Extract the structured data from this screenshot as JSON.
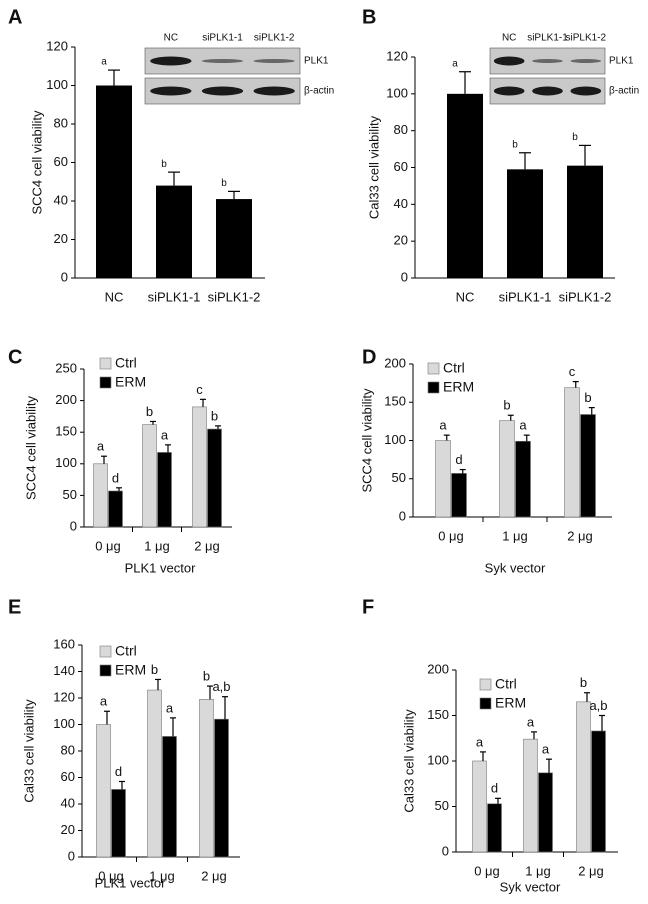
{
  "chart_data": [
    {
      "type": "bar",
      "panel": "A",
      "ylabel": "SCC4 cell viability",
      "categories": [
        "NC",
        "siPLK1-1",
        "siPLK1-2"
      ],
      "values": [
        100,
        48,
        41
      ],
      "errors": [
        8,
        7,
        4
      ],
      "letters": [
        "a",
        "b",
        "b"
      ],
      "color": "#000000",
      "ylim": [
        0,
        120
      ],
      "yticks": [
        0,
        20,
        40,
        60,
        80,
        100,
        120
      ],
      "inset": {
        "lanes": [
          "NC",
          "siPLK1-1",
          "siPLK1-2"
        ],
        "rows": [
          "PLK1",
          "β-actin"
        ]
      }
    },
    {
      "type": "bar",
      "panel": "B",
      "ylabel": "Cal33 cell viability",
      "categories": [
        "NC",
        "siPLK1-1",
        "siPLK1-2"
      ],
      "values": [
        100,
        59,
        61
      ],
      "errors": [
        12,
        9,
        11
      ],
      "letters": [
        "a",
        "b",
        "b"
      ],
      "color": "#000000",
      "ylim": [
        0,
        120
      ],
      "yticks": [
        0,
        20,
        40,
        60,
        80,
        100,
        120
      ],
      "inset": {
        "lanes": [
          "NC",
          "siPLK1-1",
          "siPLK1-2"
        ],
        "rows": [
          "PLK1",
          "β-actin"
        ]
      }
    },
    {
      "type": "bar",
      "panel": "C",
      "ylabel": "SCC4 cell viability",
      "xlabel": "PLK1 vector",
      "categories": [
        "0 μg",
        "1 μg",
        "2 μg"
      ],
      "series": [
        {
          "name": "Ctrl",
          "color": "#d9d9d9",
          "values": [
            100,
            162,
            190
          ],
          "errors": [
            12,
            5,
            12
          ],
          "letters": [
            "a",
            "b",
            "c"
          ]
        },
        {
          "name": "ERM",
          "color": "#000000",
          "values": [
            57,
            118,
            155
          ],
          "errors": [
            5,
            12,
            5
          ],
          "letters": [
            "d",
            "a",
            "b"
          ]
        }
      ],
      "ylim": [
        0,
        250
      ],
      "yticks": [
        0,
        50,
        100,
        150,
        200,
        250
      ]
    },
    {
      "type": "bar",
      "panel": "D",
      "ylabel": "SCC4 cell viability",
      "xlabel": "Syk vector",
      "categories": [
        "0 μg",
        "1 μg",
        "2 μg"
      ],
      "series": [
        {
          "name": "Ctrl",
          "color": "#d9d9d9",
          "values": [
            100,
            126,
            169
          ],
          "errors": [
            7,
            7,
            8
          ],
          "letters": [
            "a",
            "b",
            "c"
          ]
        },
        {
          "name": "ERM",
          "color": "#000000",
          "values": [
            57,
            99,
            134
          ],
          "errors": [
            5,
            8,
            9
          ],
          "letters": [
            "d",
            "a",
            "b"
          ]
        }
      ],
      "ylim": [
        0,
        200
      ],
      "yticks": [
        0,
        50,
        100,
        150,
        200
      ]
    },
    {
      "type": "bar",
      "panel": "E",
      "ylabel": "Cal33 cell viability",
      "xlabel": "PLK1 vector",
      "categories": [
        "0 μg",
        "1 μg",
        "2 μg"
      ],
      "series": [
        {
          "name": "Ctrl",
          "color": "#d9d9d9",
          "values": [
            100,
            126,
            119
          ],
          "errors": [
            10,
            8,
            10
          ],
          "letters": [
            "a",
            "b",
            "b"
          ]
        },
        {
          "name": "ERM",
          "color": "#000000",
          "values": [
            51,
            91,
            104
          ],
          "errors": [
            6,
            14,
            17
          ],
          "letters": [
            "d",
            "a",
            "a,b"
          ]
        }
      ],
      "ylim": [
        0,
        160
      ],
      "yticks": [
        0,
        20,
        40,
        60,
        80,
        100,
        120,
        140,
        160
      ]
    },
    {
      "type": "bar",
      "panel": "F",
      "ylabel": "Cal33 cell viability",
      "xlabel": "Syk vector",
      "categories": [
        "0 μg",
        "1 μg",
        "2 μg"
      ],
      "series": [
        {
          "name": "Ctrl",
          "color": "#d9d9d9",
          "values": [
            100,
            124,
            165
          ],
          "errors": [
            10,
            8,
            10
          ],
          "letters": [
            "a",
            "a",
            "b"
          ]
        },
        {
          "name": "ERM",
          "color": "#000000",
          "values": [
            53,
            87,
            133
          ],
          "errors": [
            6,
            15,
            17
          ],
          "letters": [
            "d",
            "a",
            "a,b"
          ]
        }
      ],
      "ylim": [
        0,
        200
      ],
      "yticks": [
        0,
        50,
        100,
        150,
        200
      ]
    }
  ]
}
